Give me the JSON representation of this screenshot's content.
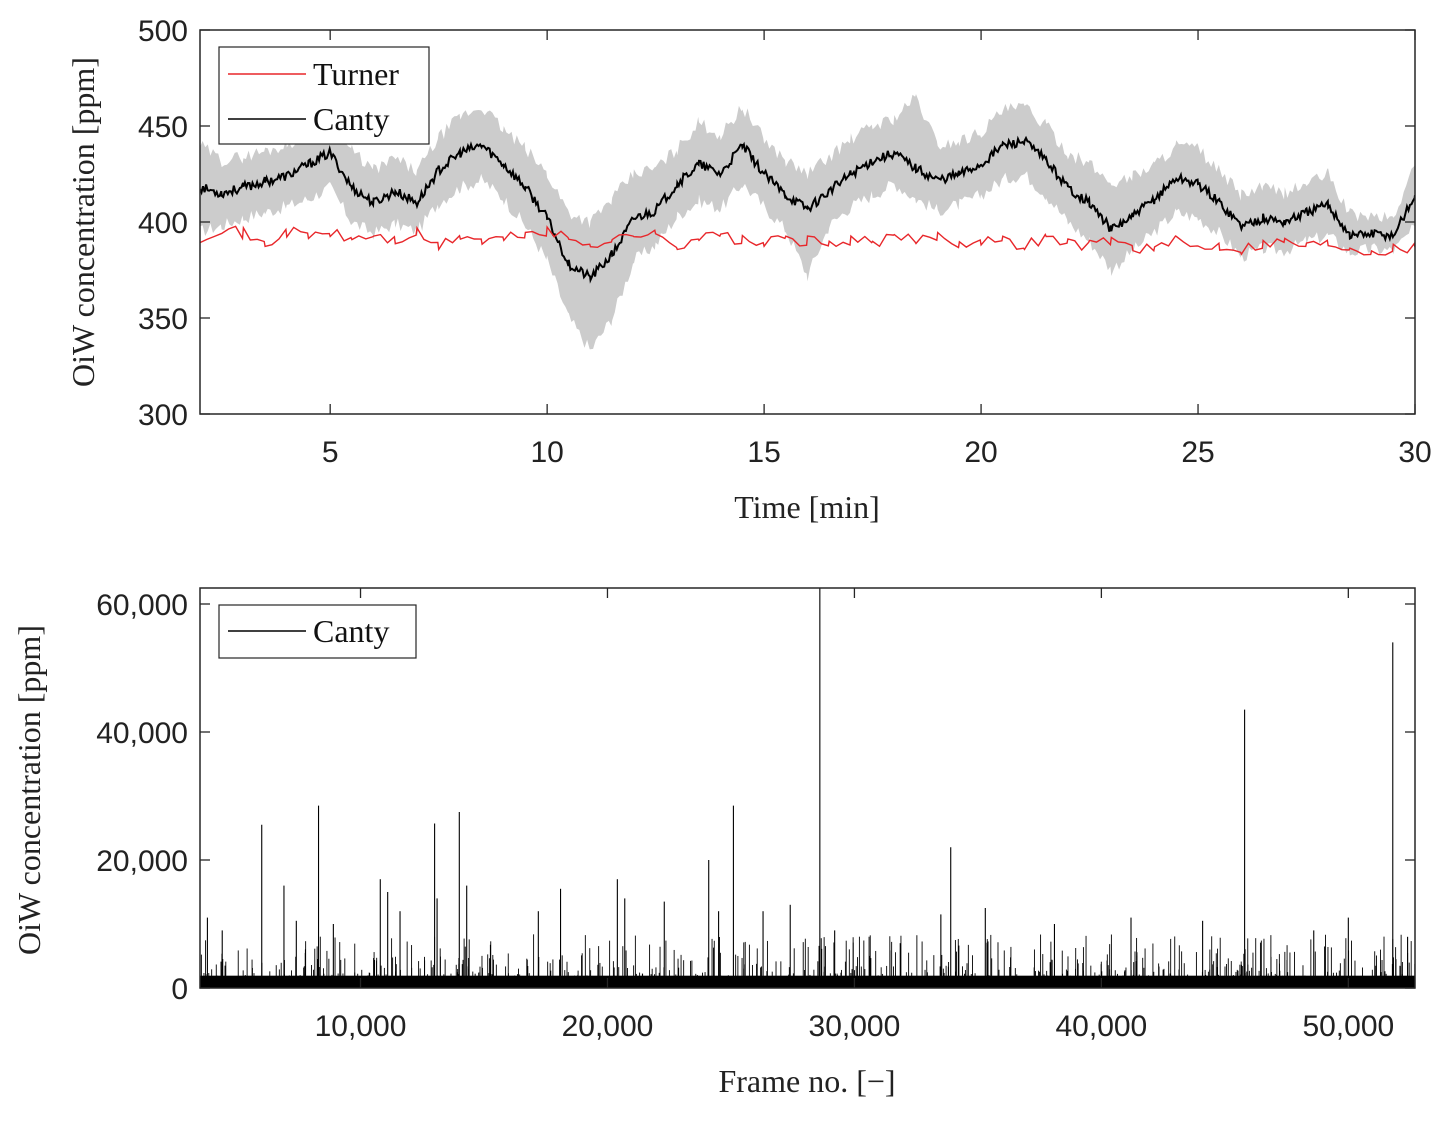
{
  "colors": {
    "turner": "#e8262a",
    "canty": "#000000",
    "band": "#cccccc",
    "axis": "#262626"
  },
  "chart_data": [
    {
      "type": "line",
      "title": "",
      "xlabel": "Time [min]",
      "ylabel": "OiW concentration [ppm]",
      "xlim": [
        2,
        30
      ],
      "ylim": [
        300,
        500
      ],
      "xticks": [
        5,
        10,
        15,
        20,
        25,
        30
      ],
      "xtick_labels": [
        "5",
        "10",
        "15",
        "20",
        "25",
        "30"
      ],
      "yticks": [
        300,
        350,
        400,
        450,
        500
      ],
      "ytick_labels": [
        "300",
        "350",
        "400",
        "450",
        "500"
      ],
      "legend": {
        "position": "top-left",
        "entries": [
          "Turner",
          "Canty"
        ]
      },
      "series": [
        {
          "name": "Turner",
          "color_key": "turner",
          "x": [
            2,
            2.5,
            3,
            3.5,
            4,
            4.5,
            5,
            5.5,
            6,
            6.5,
            7,
            7.5,
            8,
            8.5,
            9,
            9.5,
            10,
            10.5,
            11,
            11.5,
            12,
            12.5,
            13,
            13.5,
            14,
            14.5,
            15,
            15.5,
            16,
            16.5,
            17,
            17.5,
            18,
            18.5,
            19,
            19.5,
            20,
            20.5,
            21,
            21.5,
            22,
            22.5,
            23,
            23.5,
            24,
            24.5,
            25,
            25.5,
            26,
            26.5,
            27,
            27.5,
            28,
            28.5,
            29,
            29.5,
            30
          ],
          "y": [
            392,
            397,
            394,
            388,
            395,
            393,
            394,
            391,
            393,
            390,
            394,
            387,
            393,
            390,
            391,
            394,
            395,
            391,
            389,
            390,
            394,
            393,
            388,
            392,
            393,
            390,
            389,
            391,
            390,
            388,
            391,
            389,
            392,
            390,
            393,
            389,
            391,
            390,
            388,
            392,
            389,
            388,
            391,
            387,
            386,
            390,
            387,
            388,
            386,
            389,
            390,
            388,
            389,
            387,
            385,
            386,
            387
          ]
        },
        {
          "name": "Canty",
          "color_key": "canty",
          "x": [
            2,
            2.5,
            3,
            3.5,
            4,
            4.5,
            5,
            5.5,
            6,
            6.5,
            7,
            7.5,
            8,
            8.5,
            9,
            9.5,
            10,
            10.5,
            11,
            11.5,
            12,
            12.5,
            13,
            13.5,
            14,
            14.5,
            15,
            15.5,
            16,
            16.5,
            17,
            17.5,
            18,
            18.5,
            19,
            19.5,
            20,
            20.5,
            21,
            21.5,
            22,
            22.5,
            23,
            23.5,
            24,
            24.5,
            25,
            25.5,
            26,
            26.5,
            27,
            27.5,
            28,
            28.5,
            29,
            29.5,
            30
          ],
          "y": [
            418,
            415,
            418,
            421,
            424,
            430,
            436,
            418,
            410,
            416,
            410,
            427,
            436,
            440,
            430,
            418,
            402,
            378,
            371,
            383,
            402,
            406,
            420,
            430,
            425,
            440,
            425,
            414,
            407,
            416,
            425,
            432,
            436,
            428,
            422,
            425,
            430,
            440,
            442,
            432,
            418,
            410,
            396,
            403,
            412,
            423,
            420,
            410,
            398,
            402,
            400,
            405,
            409,
            393,
            394,
            393,
            414
          ]
        }
      ],
      "band": {
        "name": "Canty uncertainty",
        "x": [
          2,
          2.5,
          3,
          3.5,
          4,
          4.5,
          5,
          5.5,
          6,
          6.5,
          7,
          7.5,
          8,
          8.5,
          9,
          9.5,
          10,
          10.5,
          11,
          11.5,
          12,
          12.5,
          13,
          13.5,
          14,
          14.5,
          15,
          15.5,
          16,
          16.5,
          17,
          17.5,
          18,
          18.5,
          19,
          19.5,
          20,
          20.5,
          21,
          21.5,
          22,
          22.5,
          23,
          23.5,
          24,
          24.5,
          25,
          25.5,
          26,
          26.5,
          27,
          27.5,
          28,
          28.5,
          29,
          29.5,
          30
        ],
        "lower": [
          395,
          398,
          402,
          405,
          408,
          412,
          418,
          400,
          394,
          399,
          395,
          410,
          418,
          422,
          412,
          398,
          380,
          350,
          333,
          350,
          380,
          388,
          403,
          411,
          407,
          420,
          408,
          396,
          372,
          398,
          408,
          414,
          420,
          412,
          406,
          409,
          414,
          422,
          425,
          414,
          400,
          390,
          375,
          385,
          395,
          405,
          402,
          394,
          382,
          386,
          385,
          390,
          393,
          384,
          386,
          385,
          397
        ],
        "upper": [
          440,
          432,
          434,
          437,
          440,
          448,
          452,
          437,
          427,
          433,
          426,
          444,
          455,
          460,
          448,
          438,
          425,
          405,
          400,
          412,
          425,
          428,
          438,
          452,
          445,
          460,
          443,
          432,
          425,
          434,
          443,
          450,
          454,
          465,
          440,
          442,
          447,
          458,
          460,
          450,
          436,
          430,
          420,
          424,
          430,
          440,
          438,
          426,
          414,
          418,
          415,
          420,
          425,
          404,
          403,
          402,
          430
        ]
      }
    },
    {
      "type": "line",
      "title": "",
      "xlabel": "Frame no. [−]",
      "ylabel": "OiW concentration [ppm]",
      "xlim": [
        3500,
        52700
      ],
      "ylim": [
        0,
        62500
      ],
      "xticks": [
        10000,
        20000,
        30000,
        40000,
        50000
      ],
      "xtick_labels": [
        "10,000",
        "20,000",
        "30,000",
        "40,000",
        "50,000"
      ],
      "yticks": [
        0,
        20000,
        40000,
        60000
      ],
      "ytick_labels": [
        "0",
        "20,000",
        "40,000",
        "60,000"
      ],
      "legend": {
        "position": "top-left",
        "entries": [
          "Canty"
        ]
      },
      "series": [
        {
          "name": "Canty",
          "color_key": "canty",
          "baseline_band": [
            0,
            3500
          ]
        }
      ],
      "spikes": [
        {
          "x": 3800,
          "y": 11000
        },
        {
          "x": 4400,
          "y": 9000
        },
        {
          "x": 6000,
          "y": 25500
        },
        {
          "x": 6900,
          "y": 16000
        },
        {
          "x": 7400,
          "y": 10500
        },
        {
          "x": 8300,
          "y": 28500
        },
        {
          "x": 8900,
          "y": 10000
        },
        {
          "x": 10800,
          "y": 17000
        },
        {
          "x": 11100,
          "y": 15000
        },
        {
          "x": 11600,
          "y": 12000
        },
        {
          "x": 13000,
          "y": 25700
        },
        {
          "x": 13100,
          "y": 14000
        },
        {
          "x": 14000,
          "y": 27500
        },
        {
          "x": 14300,
          "y": 16000
        },
        {
          "x": 17200,
          "y": 12000
        },
        {
          "x": 18100,
          "y": 15500
        },
        {
          "x": 20400,
          "y": 17000
        },
        {
          "x": 20700,
          "y": 14000
        },
        {
          "x": 22300,
          "y": 13500
        },
        {
          "x": 24100,
          "y": 20000
        },
        {
          "x": 24500,
          "y": 12000
        },
        {
          "x": 25100,
          "y": 28500
        },
        {
          "x": 26300,
          "y": 12000
        },
        {
          "x": 27400,
          "y": 13000
        },
        {
          "x": 28600,
          "y": 62500
        },
        {
          "x": 29200,
          "y": 9000
        },
        {
          "x": 33500,
          "y": 11500
        },
        {
          "x": 33900,
          "y": 22000
        },
        {
          "x": 35300,
          "y": 12500
        },
        {
          "x": 38100,
          "y": 10000
        },
        {
          "x": 41200,
          "y": 11000
        },
        {
          "x": 44100,
          "y": 10500
        },
        {
          "x": 45800,
          "y": 43500
        },
        {
          "x": 48600,
          "y": 9000
        },
        {
          "x": 50000,
          "y": 11000
        },
        {
          "x": 51800,
          "y": 54000
        },
        {
          "x": 52400,
          "y": 8000
        }
      ]
    }
  ]
}
